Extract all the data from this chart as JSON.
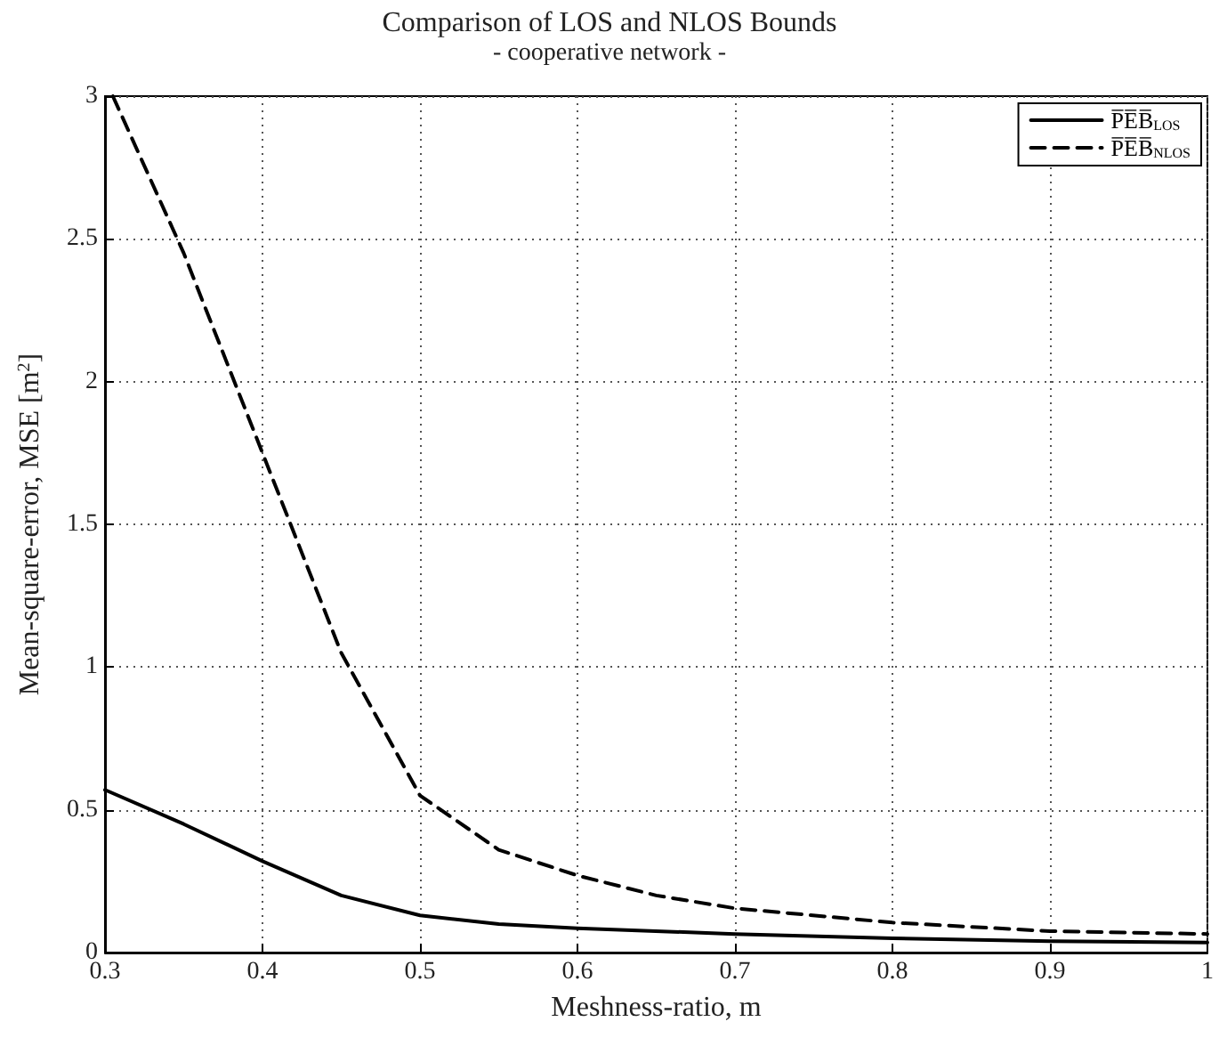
{
  "chart_data": {
    "type": "line",
    "title": "Comparison of LOS and NLOS Bounds",
    "subtitle": "- cooperative network -",
    "xlabel": "Meshness-ratio, m",
    "ylabel": "Mean-square-error, MSE [m$^{2}$]",
    "series": [
      {
        "name": "P̅E̅B̅$_{LOS}$",
        "color": "#000000",
        "line_style": "solid",
        "x": [
          0.3,
          0.35,
          0.4,
          0.45,
          0.5,
          0.55,
          0.6,
          0.7,
          0.8,
          0.9,
          1.0
        ],
        "values": [
          0.57,
          0.45,
          0.32,
          0.2,
          0.13,
          0.1,
          0.085,
          0.065,
          0.05,
          0.04,
          0.035
        ]
      },
      {
        "name": "P̅E̅B̅$_{NLOS}$",
        "color": "#000000",
        "line_style": "dashed",
        "x": [
          0.305,
          0.35,
          0.4,
          0.45,
          0.5,
          0.55,
          0.6,
          0.65,
          0.7,
          0.8,
          0.9,
          1.0
        ],
        "values": [
          3.0,
          2.45,
          1.75,
          1.05,
          0.55,
          0.36,
          0.27,
          0.2,
          0.155,
          0.105,
          0.075,
          0.065
        ]
      }
    ],
    "xlim": [
      0.3,
      1
    ],
    "xticks": [
      0.3,
      0.4,
      0.5,
      0.6,
      0.7,
      0.8,
      0.9,
      1
    ],
    "ylim": [
      0,
      3
    ],
    "yticks": [
      0,
      0.5,
      1,
      1.5,
      2,
      2.5,
      3
    ],
    "grid": true,
    "legend": "top right",
    "marker": "none"
  }
}
